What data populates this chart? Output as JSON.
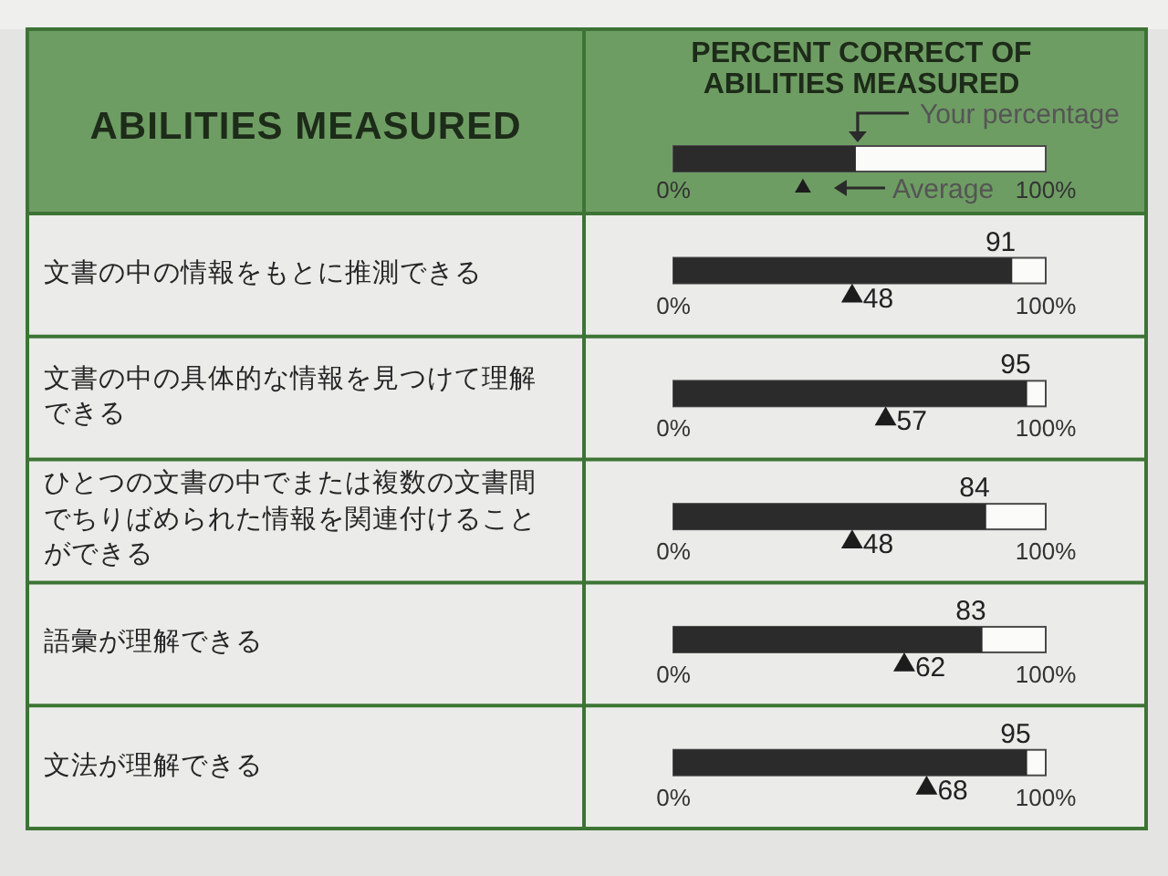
{
  "chart_data": {
    "type": "bar",
    "orientation": "horizontal",
    "ylabel": "ABILITIES MEASURED",
    "xlabel": "PERCENT CORRECT OF ABILITIES MEASURED",
    "categories": [
      "文書の中の情報をもとに推測できる",
      "文書の中の具体的な情報を見つけて理解できる",
      "ひとつの文書の中でまたは複数の文書間でちりばめられた情報を関連付けることができる",
      "語彙が理解できる",
      "文法が理解できる"
    ],
    "series": [
      {
        "name": "Your percentage",
        "type": "bar",
        "color": "#2b2b2b",
        "values": [
          91,
          95,
          84,
          83,
          95
        ]
      },
      {
        "name": "Average",
        "type": "scatter",
        "color": "#1c1c1c",
        "values": [
          48,
          57,
          48,
          62,
          68
        ]
      }
    ],
    "xlim": [
      0,
      100
    ],
    "xticks": [
      {
        "value": 0,
        "label": "0%"
      },
      {
        "value": 100,
        "label": "100%"
      }
    ],
    "marker": "triangle",
    "data_labels": true,
    "legend": "top"
  }
}
